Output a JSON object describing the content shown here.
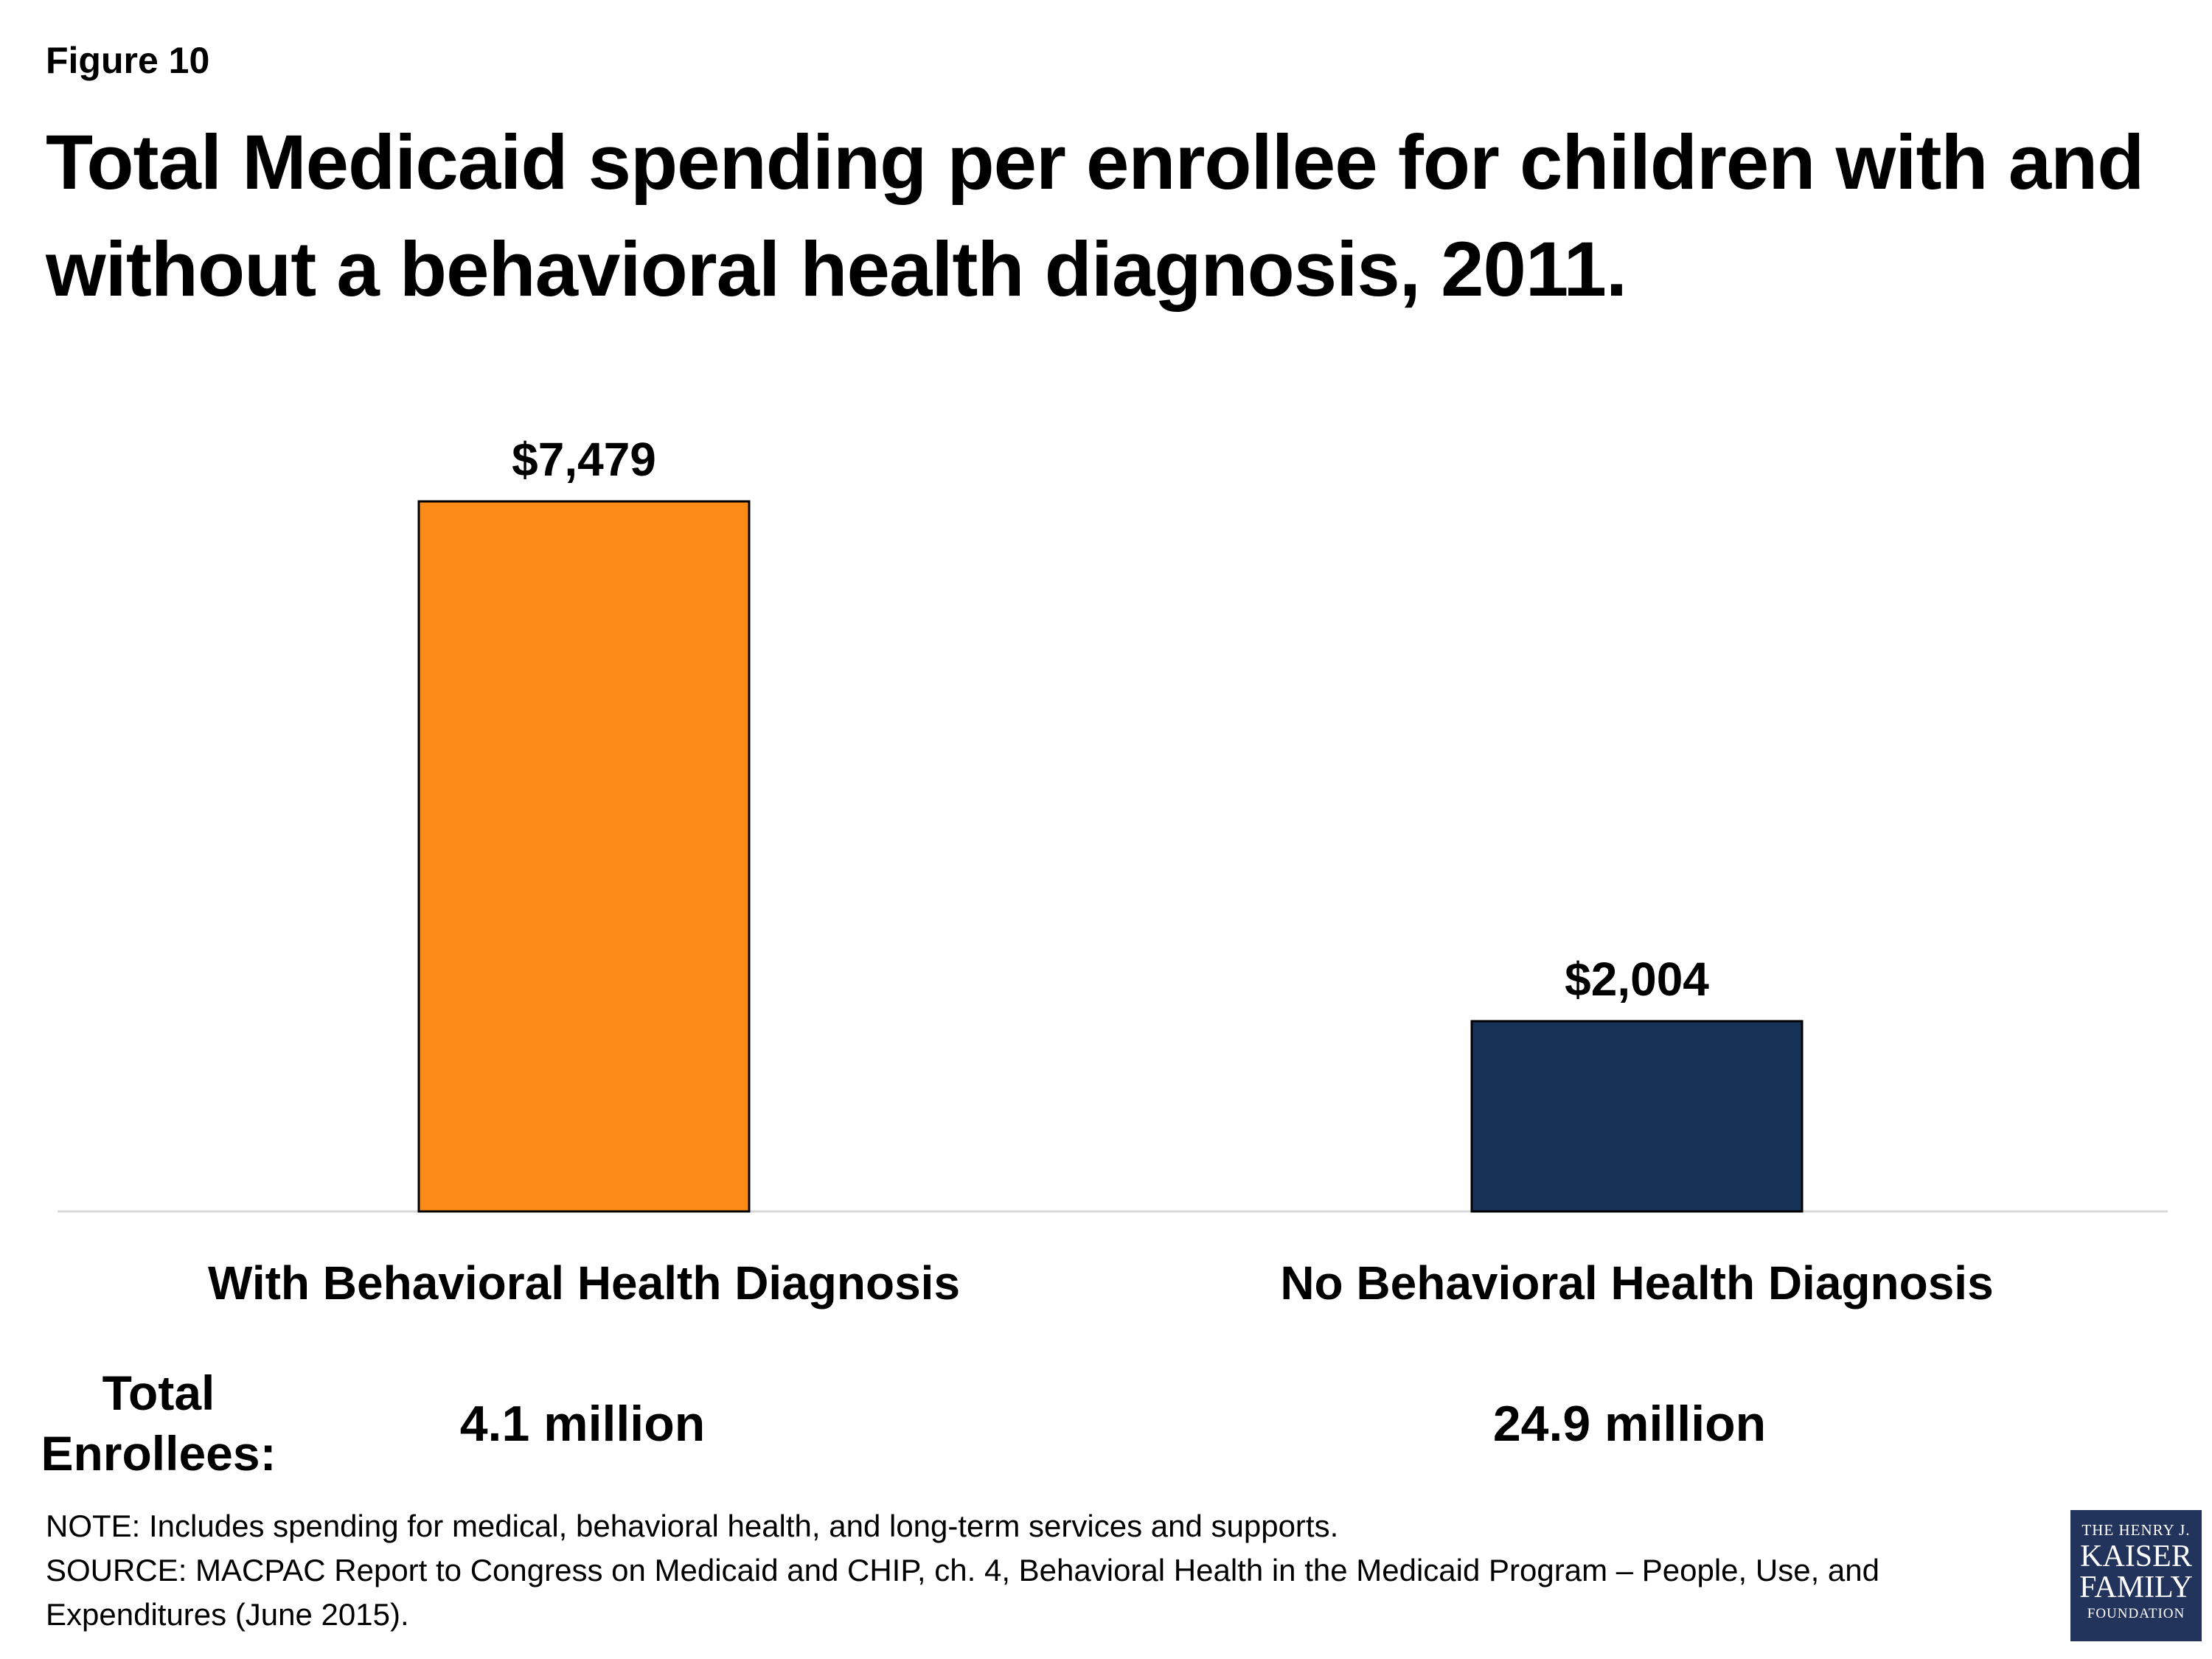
{
  "figure_label": "Figure 10",
  "title": "Total Medicaid spending per enrollee for children with and without a behavioral health diagnosis, 2011.",
  "chart_data": {
    "type": "bar",
    "title": "Total Medicaid spending per enrollee for children with and without a behavioral health diagnosis, 2011.",
    "xlabel": "",
    "ylabel": "",
    "categories": [
      "With Behavioral Health Diagnosis",
      "No Behavioral Health Diagnosis"
    ],
    "values": [
      7479,
      2004
    ],
    "value_labels": [
      "$7,479",
      "$2,004"
    ],
    "colors": [
      "#fd8b17",
      "#163357"
    ],
    "grid": false,
    "legend": "none"
  },
  "enrollees": {
    "label": "Total Enrollees:",
    "values": [
      "4.1 million",
      "24.9 million"
    ]
  },
  "notes": {
    "note": "NOTE:  Includes spending for medical, behavioral health, and long-term services and supports.",
    "source": "SOURCE:  MACPAC Report to Congress on Medicaid and CHIP, ch. 4, Behavioral Health in the Medicaid Program – People, Use, and Expenditures (June 2015)."
  },
  "logo": {
    "line1": "THE HENRY J.",
    "line2": "KAISER",
    "line3": "FAMILY",
    "line4": "FOUNDATION"
  }
}
